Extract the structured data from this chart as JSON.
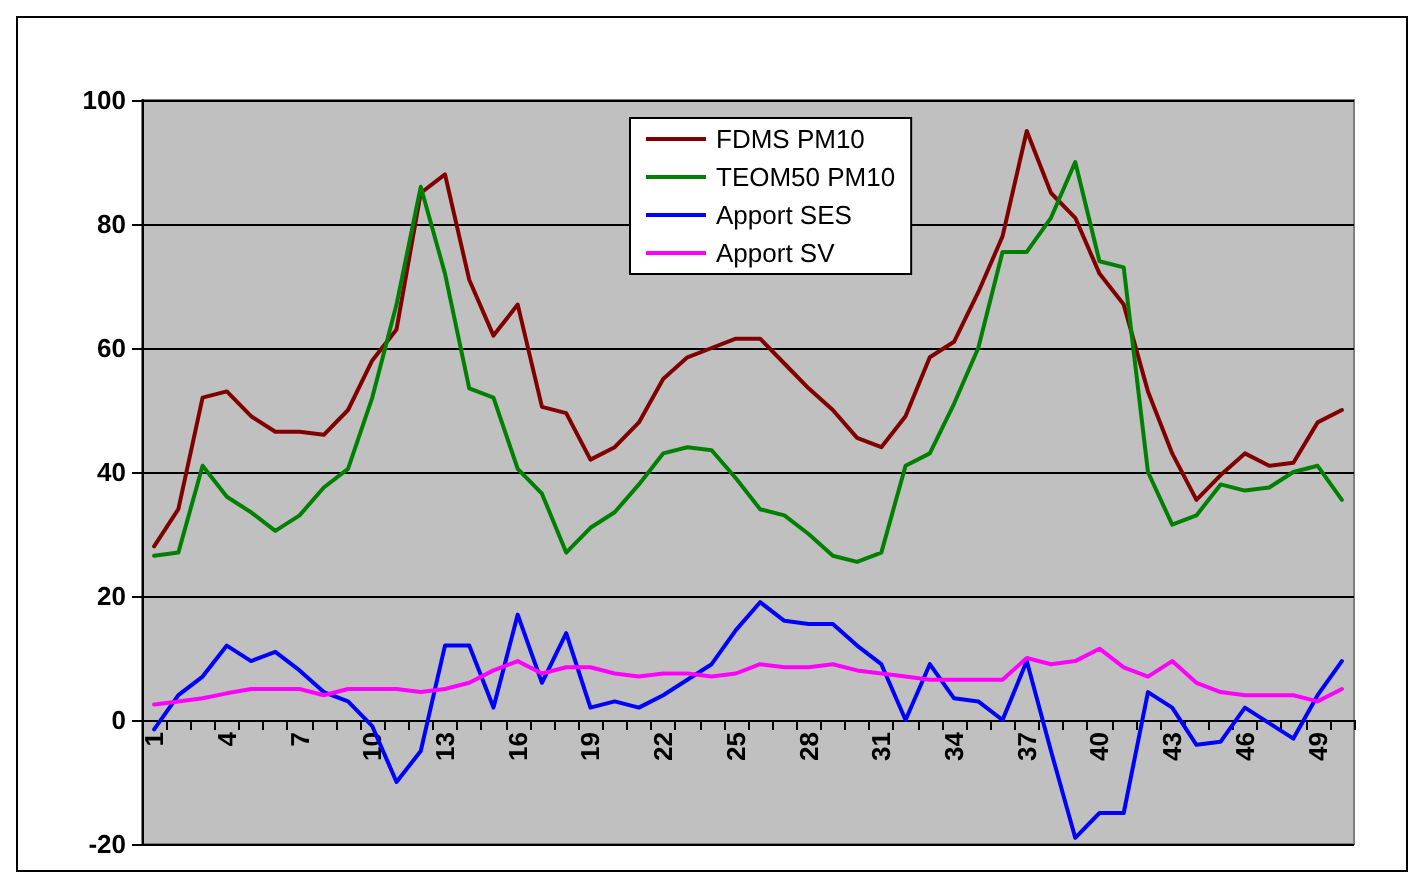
{
  "chart_data": {
    "type": "line",
    "categories": [
      "1",
      null,
      null,
      "4",
      null,
      null,
      "7",
      null,
      null,
      "10",
      null,
      null,
      "13",
      null,
      null,
      "16",
      null,
      null,
      "19",
      null,
      null,
      "22",
      null,
      null,
      "25",
      null,
      null,
      "28",
      null,
      null,
      "31",
      null,
      null,
      "34",
      null,
      null,
      "37",
      null,
      null,
      "40",
      null,
      null,
      "43",
      null,
      null,
      "46",
      null,
      null,
      "49",
      null
    ],
    "series": [
      {
        "name": "FDMS PM10",
        "color": "#800000",
        "values": [
          28,
          34,
          52,
          53,
          49,
          46.5,
          46.5,
          46,
          50,
          58,
          63,
          85,
          88,
          71,
          62,
          67,
          50.5,
          49.5,
          42,
          44,
          48,
          55,
          58.5,
          60,
          61.5,
          61.5,
          57.5,
          53.5,
          50,
          45.5,
          44,
          49,
          58.5,
          61,
          69,
          78,
          95,
          85,
          81,
          72,
          67,
          53,
          43,
          35.5,
          39.5,
          43,
          41,
          41.5,
          48,
          50
        ]
      },
      {
        "name": "TEOM50 PM10",
        "color": "#008000",
        "values": [
          26.5,
          27,
          41,
          36,
          33.5,
          30.5,
          33,
          37.5,
          40.5,
          52,
          67,
          86,
          72,
          53.5,
          52,
          40.5,
          36.5,
          27,
          31,
          33.5,
          38,
          43,
          44,
          43.5,
          39,
          34,
          33,
          30,
          26.5,
          25.5,
          27,
          41,
          43,
          51,
          60,
          75.5,
          75.5,
          81,
          90,
          74,
          73,
          40,
          31.5,
          33,
          38,
          37,
          37.5,
          40,
          41,
          35.5
        ]
      },
      {
        "name": "Apport SES",
        "color": "#0000ff",
        "values": [
          -1.5,
          4,
          7,
          12,
          9.5,
          11,
          8,
          4.5,
          3,
          -1,
          -10,
          -5,
          12,
          12,
          2,
          17,
          6,
          14,
          2,
          3,
          2,
          4,
          6.5,
          9,
          14.5,
          19,
          16,
          15.5,
          15.5,
          12,
          9,
          0,
          9,
          3.5,
          3,
          0,
          9.5,
          -5,
          -19,
          -15,
          -15,
          4.5,
          2,
          -4,
          -3.5,
          2,
          -0.5,
          -3,
          4,
          9.5
        ]
      },
      {
        "name": "Apport SV",
        "color": "#ff00ff",
        "values": [
          2.5,
          3,
          3.5,
          4.3,
          5,
          5,
          5,
          4,
          5,
          5,
          5,
          4.5,
          5,
          6,
          8,
          9.5,
          7.5,
          8.5,
          8.5,
          7.5,
          7,
          7.5,
          7.5,
          7,
          7.5,
          9,
          8.5,
          8.5,
          9,
          8,
          7.5,
          7,
          6.5,
          6.5,
          6.5,
          6.5,
          10,
          9,
          9.5,
          11.5,
          8.5,
          7,
          9.5,
          6,
          4.5,
          4,
          4,
          4,
          3,
          5
        ]
      }
    ],
    "ylim": [
      -20,
      100
    ],
    "yticks": [
      -20,
      0,
      20,
      40,
      60,
      80,
      100
    ],
    "grid": "y",
    "legend": "top",
    "marker": "none",
    "line_style": "solid"
  }
}
